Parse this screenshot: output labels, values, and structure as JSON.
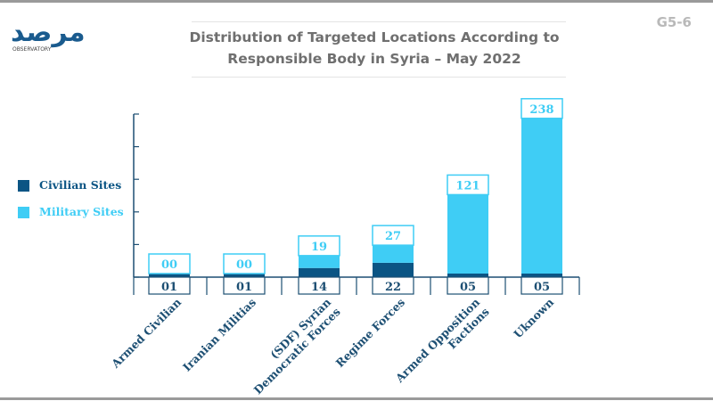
{
  "header": {
    "logo_arabic": "مرصد",
    "logo_subtitle": "OBSERVATORY",
    "code": "G5-6"
  },
  "colors": {
    "civilian": "#0b5584",
    "military": "#3fcdf5",
    "axis": "#1d4f73",
    "title": "#6f6f6f"
  },
  "legend": {
    "civilian_label": "Civilian Sites",
    "military_label": "Military Sites"
  },
  "chart_data": {
    "type": "bar",
    "stacked": true,
    "title": "Distribution of Targeted Locations According to Responsible Body in Syria – May 2022",
    "title_lines": [
      "Distribution of Targeted Locations According to",
      "Responsible Body in Syria – May 2022"
    ],
    "categories": [
      "Armed Civilian",
      "Iranian Militias",
      "(SDF) Syrian Democratic Forces",
      "Regime Forces",
      "Armed Opposition Factions",
      "Uknown"
    ],
    "category_label_lines": [
      [
        "Armed Civilian"
      ],
      [
        "Iranian Militias"
      ],
      [
        "(SDF) Syrian",
        "Democratic Forces"
      ],
      [
        "Regime Forces"
      ],
      [
        "Armed Opposition",
        "Factions"
      ],
      [
        "Uknown"
      ]
    ],
    "series": [
      {
        "name": "Civilian Sites",
        "values": [
          1,
          1,
          14,
          22,
          5,
          5
        ],
        "labels": [
          "01",
          "01",
          "14",
          "22",
          "05",
          "05"
        ]
      },
      {
        "name": "Military Sites",
        "values": [
          0,
          0,
          19,
          27,
          121,
          238
        ],
        "labels": [
          "00",
          "00",
          "19",
          "27",
          "121",
          "238"
        ]
      }
    ],
    "ylim": [
      0,
      250
    ],
    "y_ticks": [
      0,
      50,
      100,
      150,
      200,
      250
    ],
    "legend_position": "left",
    "grid": false
  }
}
